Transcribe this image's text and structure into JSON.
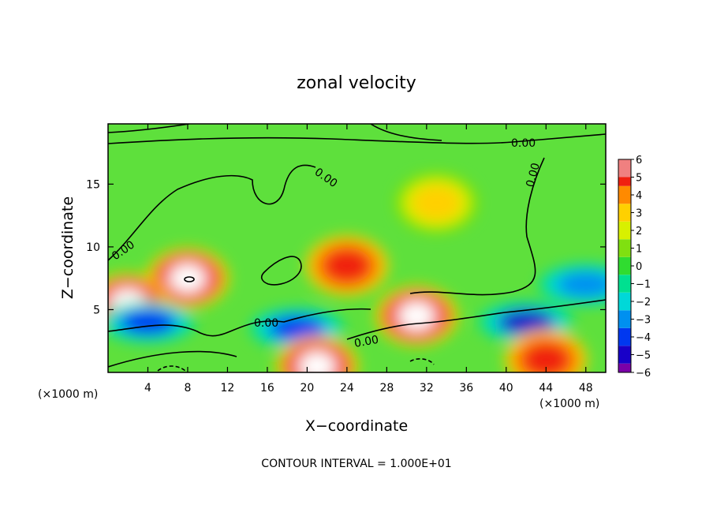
{
  "chart_data": {
    "type": "heatmap",
    "title": "zonal velocity",
    "xlabel": "X−coordinate",
    "ylabel": "Z−coordinate",
    "x_unit": "(×1000 m)",
    "x_unit_right": "(×1000 m)",
    "x_ticks": [
      4,
      8,
      12,
      16,
      20,
      24,
      28,
      32,
      36,
      40,
      44,
      48
    ],
    "y_ticks": [
      5,
      10,
      15
    ],
    "xlim": [
      0,
      50
    ],
    "ylim": [
      0,
      19.8
    ],
    "footer": "CONTOUR INTERVAL = 1.000E+01",
    "contour_labels": [
      "0.00",
      "0.00",
      "0.00",
      "0.00",
      "0.00",
      "0.00"
    ],
    "colorbar": {
      "ticks": [
        "6",
        "5",
        "4",
        "3",
        "2",
        "1",
        "0",
        "−1",
        "−2",
        "−3",
        "−4",
        "−5",
        "−6"
      ],
      "range": [
        -6,
        6
      ],
      "colors": [
        "#7a00a8",
        "#1800c8",
        "#0038f0",
        "#0090f0",
        "#00d8d8",
        "#00e090",
        "#30dc30",
        "#80e010",
        "#d8f000",
        "#ffd000",
        "#ff8a00",
        "#f02010",
        "#f08080"
      ]
    },
    "features": [
      {
        "kind": "positive",
        "x": 8,
        "z": 7.5,
        "max": 6
      },
      {
        "kind": "positive",
        "x": 2,
        "z": 5.5,
        "max": 6
      },
      {
        "kind": "positive",
        "x": 31,
        "z": 4.5,
        "max": 6
      },
      {
        "kind": "positive",
        "x": 24,
        "z": 8.5,
        "max": 5
      },
      {
        "kind": "positive",
        "x": 33,
        "z": 13.5,
        "max": 3
      },
      {
        "kind": "negative",
        "x": 4,
        "z": 4,
        "min": -4
      },
      {
        "kind": "negative",
        "x": 19,
        "z": 3.5,
        "min": -4
      },
      {
        "kind": "negative",
        "x": 42,
        "z": 4,
        "min": -5
      },
      {
        "kind": "negative",
        "x": 48,
        "z": 7,
        "min": -3
      },
      {
        "kind": "positive",
        "x": 21,
        "z": 0.5,
        "max": 6
      },
      {
        "kind": "positive",
        "x": 44,
        "z": 1,
        "max": 5
      }
    ]
  }
}
